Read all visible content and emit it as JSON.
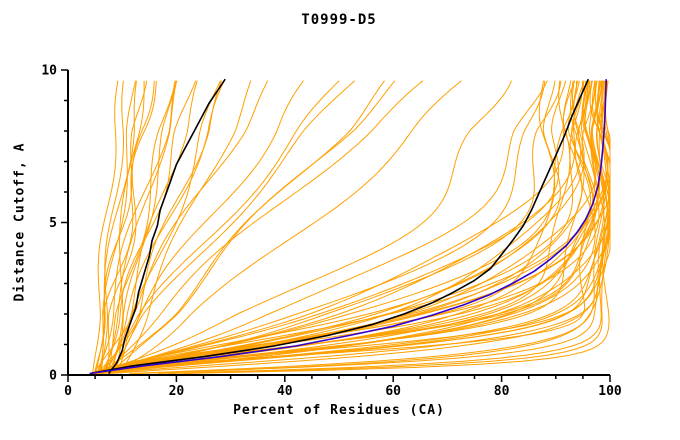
{
  "chart_data": {
    "type": "line",
    "title": "T0999-D5",
    "xlabel": "Percent of Residues (CA)",
    "ylabel": "Distance Cutoff, A",
    "xlim": [
      0,
      100
    ],
    "ylim": [
      0,
      10
    ],
    "x_major_ticks": [
      0,
      20,
      40,
      60,
      80,
      100
    ],
    "y_major_ticks": [
      0,
      5,
      10
    ],
    "x_minor_step": 5,
    "y_minor_step": 1,
    "grid": false,
    "legend": false,
    "colors": {
      "model": "#ffa000",
      "reference": "#000000",
      "highlight": "#3300cc"
    },
    "model_curves": {
      "saturating_format": "xend,tau,p,phase,amp (x = 4+(xend-4)*(1-exp(-(y/tau)^p)))",
      "saturating": [
        [
          99.4,
          0.25,
          1.0,
          0.4,
          0.8
        ],
        [
          99.0,
          0.35,
          1.0,
          1.3,
          0.9
        ],
        [
          98.6,
          0.45,
          1.1,
          2.2,
          1.0
        ],
        [
          98.2,
          0.55,
          1.05,
          0.8,
          1.1
        ],
        [
          99.2,
          0.3,
          1.0,
          1.9,
          0.7
        ],
        [
          98.9,
          0.5,
          1.0,
          2.7,
          0.9
        ],
        [
          99.5,
          0.9,
          1.3,
          0.5,
          1.5
        ],
        [
          99.0,
          1.1,
          1.4,
          1.2,
          2.0
        ],
        [
          98.5,
          1.3,
          1.2,
          2.1,
          1.8
        ],
        [
          98.0,
          1.5,
          1.5,
          0.2,
          2.2
        ],
        [
          97.5,
          1.0,
          1.6,
          1.8,
          1.4
        ],
        [
          97.0,
          1.8,
          1.3,
          2.6,
          2.0
        ],
        [
          96.5,
          2.0,
          1.2,
          0.9,
          2.4
        ],
        [
          96.0,
          1.4,
          1.7,
          1.5,
          1.6
        ],
        [
          95.5,
          1.2,
          1.4,
          2.9,
          1.9
        ],
        [
          95.0,
          2.2,
          1.1,
          0.4,
          2.1
        ],
        [
          99.8,
          0.8,
          1.2,
          1.1,
          1.2
        ],
        [
          99.2,
          1.0,
          1.5,
          2.3,
          1.7
        ],
        [
          98.8,
          1.6,
          1.3,
          0.7,
          2.3
        ],
        [
          98.2,
          1.9,
          1.4,
          1.9,
          1.5
        ],
        [
          97.8,
          1.1,
          1.8,
          2.7,
          1.3
        ],
        [
          97.2,
          1.3,
          1.2,
          0.3,
          2.5
        ],
        [
          96.8,
          2.1,
          1.5,
          1.4,
          1.8
        ],
        [
          96.2,
          1.7,
          1.6,
          2.2,
          2.0
        ],
        [
          95.8,
          0.9,
          1.9,
          0.8,
          1.4
        ],
        [
          94.5,
          1.5,
          1.3,
          1.6,
          2.6
        ],
        [
          94.0,
          2.4,
          1.2,
          2.8,
          1.9
        ],
        [
          93.5,
          1.2,
          1.6,
          0.6,
          1.7
        ],
        [
          93.0,
          1.8,
          1.4,
          1.3,
          2.2
        ],
        [
          92.0,
          2.6,
          1.1,
          2.4,
          2.8
        ],
        [
          91.0,
          1.4,
          1.5,
          0.1,
          1.6
        ],
        [
          90.0,
          2.0,
          1.3,
          1.7,
          2.4
        ],
        [
          89.0,
          2.9,
          1.2,
          2.5,
          2.0
        ],
        [
          88.0,
          1.6,
          1.7,
          0.95,
          1.8
        ],
        [
          99.6,
          1.05,
          1.35,
          1.55,
          1.5
        ],
        [
          98.4,
          1.25,
          1.45,
          2.15,
          1.9
        ],
        [
          97.6,
          1.45,
          1.25,
          0.45,
          2.1
        ],
        [
          96.4,
          1.65,
          1.55,
          1.05,
          1.7
        ],
        [
          95.2,
          1.85,
          1.35,
          1.95,
          2.3
        ],
        [
          94.8,
          2.05,
          1.25,
          2.65,
          1.6
        ],
        [
          93.8,
          2.3,
          1.45,
          0.25,
          2.0
        ],
        [
          92.5,
          2.7,
          1.3,
          1.45,
          2.5
        ],
        [
          96.0,
          3.2,
          1.2,
          0.65,
          2.2
        ],
        [
          94.0,
          3.8,
          1.1,
          1.85,
          2.6
        ],
        [
          91.0,
          4.5,
          1.05,
          2.35,
          3.0
        ],
        [
          97.0,
          2.8,
          1.15,
          0.85,
          2.0
        ]
      ],
      "vertical_format": "x0,slope,phase,amp,freq (x = x0+slope*y+wiggle)",
      "vertical": [
        [
          4.5,
          0.5,
          0.3,
          0.8,
          1.1
        ],
        [
          5.0,
          0.8,
          1.2,
          1.0,
          0.9
        ],
        [
          5.5,
          1.1,
          2.0,
          1.2,
          1.3
        ],
        [
          6.0,
          0.45,
          0.7,
          0.9,
          1.0
        ],
        [
          6.5,
          1.4,
          1.6,
          1.1,
          0.8
        ],
        [
          7.0,
          0.9,
          2.5,
          1.3,
          1.2
        ],
        [
          7.5,
          1.7,
          0.2,
          1.0,
          1.0
        ],
        [
          8.0,
          0.6,
          1.0,
          1.4,
          0.7
        ],
        [
          8.5,
          1.2,
          1.9,
          0.8,
          1.1
        ],
        [
          9.0,
          2.0,
          2.8,
          1.2,
          0.9
        ],
        [
          4.8,
          1.0,
          0.5,
          1.0,
          1.3
        ],
        [
          5.2,
          1.5,
          1.4,
          1.5,
          0.8
        ],
        [
          5.8,
          0.7,
          2.2,
          0.9,
          1.0
        ],
        [
          6.2,
          1.8,
          0.9,
          1.1,
          1.2
        ],
        [
          6.8,
          2.3,
          1.7,
          1.3,
          0.9
        ],
        [
          7.2,
          1.3,
          2.6,
          1.0,
          1.1
        ],
        [
          8.2,
          2.1,
          0.4,
          1.2,
          1.0
        ],
        [
          9.5,
          2.5,
          1.3,
          1.4,
          0.8
        ]
      ],
      "diagonal_format": "x0,xtop,q,phase,amp (x = x0+(xtop-x0)*(y/10)^q+wiggle)",
      "diagonal": [
        [
          4.5,
          38,
          1.0,
          0.6,
          1.5
        ],
        [
          5.0,
          45,
          0.95,
          1.5,
          1.8
        ],
        [
          6.0,
          52,
          1.05,
          2.4,
          1.6
        ],
        [
          5.5,
          60,
          0.9,
          0.35,
          2.0
        ],
        [
          6.5,
          68,
          1.1,
          1.25,
          1.7
        ],
        [
          7.0,
          75,
          0.85,
          2.15,
          2.2
        ],
        [
          8.0,
          55,
          1.15,
          2.9,
          1.5
        ],
        [
          7.5,
          62,
          1.0,
          0.05,
          1.9
        ]
      ]
    },
    "reference_curves": [
      {
        "name": "black-left",
        "points": [
          [
            7.5,
            0.05
          ],
          [
            9,
            0.4
          ],
          [
            10,
            0.8
          ],
          [
            10.5,
            1.2
          ],
          [
            11.5,
            1.7
          ],
          [
            12.5,
            2.2
          ],
          [
            13,
            2.7
          ],
          [
            14,
            3.3
          ],
          [
            15,
            3.9
          ],
          [
            15.5,
            4.4
          ],
          [
            16.5,
            4.9
          ],
          [
            17,
            5.4
          ],
          [
            18,
            5.9
          ],
          [
            19,
            6.4
          ],
          [
            20,
            6.9
          ],
          [
            21.5,
            7.4
          ],
          [
            23,
            7.9
          ],
          [
            24.5,
            8.4
          ],
          [
            26,
            8.9
          ],
          [
            27.5,
            9.3
          ],
          [
            29,
            9.7
          ]
        ]
      },
      {
        "name": "black-right",
        "points": [
          [
            4,
            0.05
          ],
          [
            12,
            0.3
          ],
          [
            25,
            0.6
          ],
          [
            38,
            0.95
          ],
          [
            48,
            1.3
          ],
          [
            56,
            1.65
          ],
          [
            62,
            2.0
          ],
          [
            67,
            2.35
          ],
          [
            71,
            2.7
          ],
          [
            75,
            3.1
          ],
          [
            78,
            3.5
          ],
          [
            80,
            3.95
          ],
          [
            82,
            4.4
          ],
          [
            84,
            4.9
          ],
          [
            85.5,
            5.4
          ],
          [
            87,
            6.0
          ],
          [
            88.5,
            6.6
          ],
          [
            90,
            7.2
          ],
          [
            91.5,
            7.8
          ],
          [
            93,
            8.5
          ],
          [
            94.5,
            9.1
          ],
          [
            96,
            9.7
          ]
        ]
      }
    ],
    "highlight_curve": {
      "name": "blue",
      "points": [
        [
          4,
          0.05
        ],
        [
          14,
          0.3
        ],
        [
          28,
          0.6
        ],
        [
          42,
          0.95
        ],
        [
          52,
          1.3
        ],
        [
          60,
          1.6
        ],
        [
          67,
          1.95
        ],
        [
          73,
          2.3
        ],
        [
          78,
          2.65
        ],
        [
          82,
          3.0
        ],
        [
          86,
          3.4
        ],
        [
          89,
          3.8
        ],
        [
          92,
          4.25
        ],
        [
          94,
          4.7
        ],
        [
          95.5,
          5.1
        ],
        [
          96.8,
          5.6
        ],
        [
          97.8,
          6.2
        ],
        [
          98.4,
          6.9
        ],
        [
          98.8,
          7.7
        ],
        [
          99.1,
          8.6
        ],
        [
          99.3,
          9.7
        ]
      ]
    }
  }
}
